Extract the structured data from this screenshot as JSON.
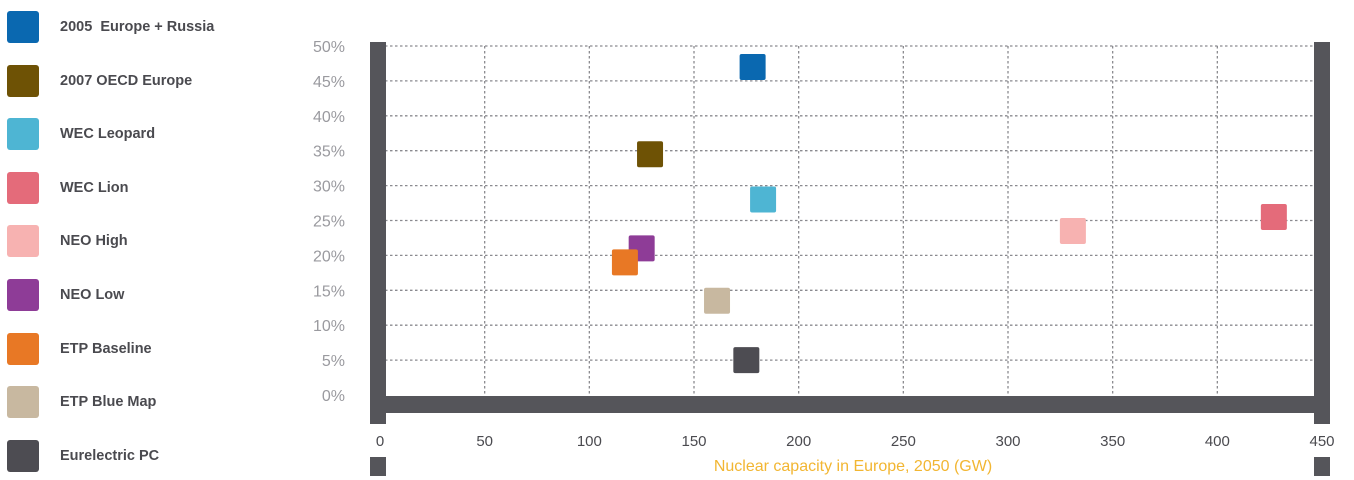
{
  "chart_data": {
    "type": "scatter",
    "title": "",
    "xlabel": "Nuclear  capacity in Europe, 2050 (GW)",
    "ylabel": "",
    "xlim": [
      0,
      450
    ],
    "ylim": [
      0,
      50
    ],
    "x_ticks": [
      "0",
      "50",
      "100",
      "150",
      "200",
      "250",
      "300",
      "350",
      "400",
      "450"
    ],
    "y_ticks": [
      "0%",
      "5%",
      "10%",
      "15%",
      "20%",
      "25%",
      "30%",
      "35%",
      "40%",
      "45%",
      "50%"
    ],
    "grid": true,
    "legend_position": "left",
    "series": [
      {
        "name": "2005  Europe + Russia",
        "color": "#0a68b0",
        "x": 178,
        "y": 47
      },
      {
        "name": "2007 OECD Europe",
        "color": "#6e5205",
        "x": 129,
        "y": 34.5
      },
      {
        "name": "WEC Leopard",
        "color": "#4eb5d3",
        "x": 183,
        "y": 28
      },
      {
        "name": "WEC Lion",
        "color": "#e46b7a",
        "x": 427,
        "y": 25.5
      },
      {
        "name": "NEO High",
        "color": "#f7b2b1",
        "x": 331,
        "y": 23.5
      },
      {
        "name": "NEO Low",
        "color": "#8e3c97",
        "x": 125,
        "y": 21
      },
      {
        "name": "ETP Baseline",
        "color": "#e87825",
        "x": 117,
        "y": 19
      },
      {
        "name": "ETP Blue Map",
        "color": "#c8b8a0",
        "x": 161,
        "y": 13.5
      },
      {
        "name": "Eurelectric PC",
        "color": "#4d4c52",
        "x": 175,
        "y": 5
      }
    ]
  }
}
